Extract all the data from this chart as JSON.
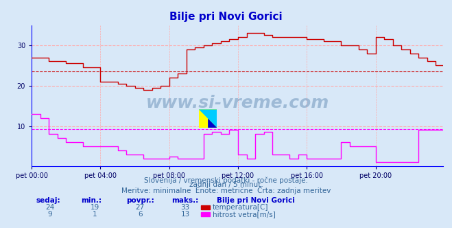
{
  "title": "Bilje pri Novi Gorici",
  "bg_color": "#d8e8f8",
  "plot_bg_color": "#d8e8f8",
  "grid_color": "#ffaaaa",
  "grid_color2": "#ffaaee",
  "ylabel_color": "#0000aa",
  "axis_color": "#0000ff",
  "temp_color": "#cc0000",
  "wind_color": "#ff00ff",
  "temp_avg_line_color": "#cc0000",
  "wind_avg_line_color": "#ff00ff",
  "x_ticks": [
    "pet 00:00",
    "pet 04:00",
    "pet 08:00",
    "pet 12:00",
    "pet 16:00",
    "pet 20:00"
  ],
  "x_tick_positions": [
    0,
    48,
    96,
    144,
    192,
    240
  ],
  "y_ticks": [
    10,
    20,
    30
  ],
  "ylim": [
    0,
    35
  ],
  "xlim": [
    0,
    287
  ],
  "temp_avg": 23.5,
  "wind_avg": 9.2,
  "footer_line1": "Slovenija / vremenski podatki - ročne postaje.",
  "footer_line2": "zadnji dan / 5 minut.",
  "footer_line3": "Meritve: minimalne  Enote: metrične  Črta: zadnja meritev",
  "stats_headers": [
    "sedaj:",
    "min.:",
    "povpr.:",
    "maks.:"
  ],
  "stats_temp": [
    24,
    19,
    27,
    33
  ],
  "stats_wind": [
    9,
    1,
    6,
    13
  ],
  "legend_title": "Bilje pri Novi Gorici",
  "legend_temp": "temperatura[C]",
  "legend_wind": "hitrost vetra[m/s]"
}
